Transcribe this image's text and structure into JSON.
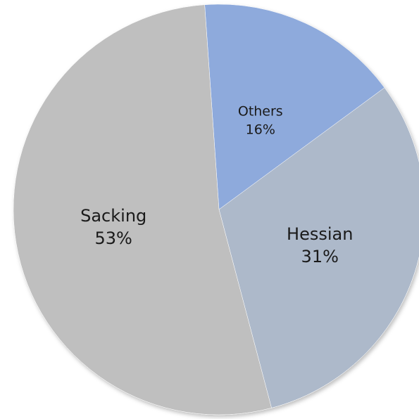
{
  "chart_data": {
    "type": "pie",
    "title": "",
    "start_angle_deg": -4,
    "direction": "clockwise",
    "slices": [
      {
        "label": "Others",
        "value": 16,
        "value_label": "16%",
        "color": "#8EAADC"
      },
      {
        "label": "Hessian",
        "value": 31,
        "value_label": "31%",
        "color": "#ADB9CA"
      },
      {
        "label": "Sacking",
        "value": 53,
        "value_label": "53%",
        "color": "#BFBFBF"
      }
    ]
  }
}
